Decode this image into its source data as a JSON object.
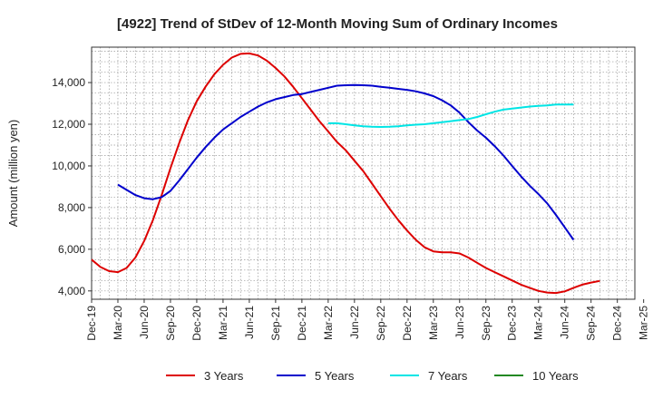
{
  "chart_data": {
    "type": "line",
    "title": "[4922]  Trend of StDev of 12-Month Moving Sum of Ordinary Incomes",
    "ylabel": "Amount (million yen)",
    "xlabel": "",
    "ylim": [
      3600,
      15700
    ],
    "yticks": [
      4000,
      6000,
      8000,
      10000,
      12000,
      14000
    ],
    "ytick_labels": [
      "4,000",
      "6,000",
      "8,000",
      "10,000",
      "12,000",
      "14,000"
    ],
    "x_start": "Dec-19",
    "x_count": 63,
    "xtick_labels": [
      "Dec-19",
      "Mar-20",
      "Jun-20",
      "Sep-20",
      "Dec-20",
      "Mar-21",
      "Jun-21",
      "Sep-21",
      "Dec-21",
      "Mar-22",
      "Jun-22",
      "Sep-22",
      "Dec-22",
      "Mar-23",
      "Jun-23",
      "Sep-23",
      "Dec-23",
      "Mar-24",
      "Jun-24",
      "Sep-24",
      "Dec-24",
      "Mar-25"
    ],
    "grid": true,
    "legend_position": "bottom",
    "series": [
      {
        "name": "3 Years",
        "color": "#dd0000",
        "start": "Dec-19",
        "values": [
          5500,
          5150,
          4950,
          4900,
          5100,
          5600,
          6400,
          7400,
          8600,
          9900,
          11100,
          12200,
          13100,
          13800,
          14400,
          14850,
          15200,
          15380,
          15400,
          15300,
          15050,
          14700,
          14300,
          13800,
          13250,
          12700,
          12150,
          11650,
          11150,
          10750,
          10250,
          9750,
          9150,
          8550,
          7950,
          7400,
          6900,
          6450,
          6100,
          5900,
          5850,
          5850,
          5800,
          5600,
          5350,
          5100,
          4900,
          4700,
          4500,
          4300,
          4150,
          4000,
          3920,
          3900,
          3980,
          4150,
          4300,
          4400,
          4480
        ]
      },
      {
        "name": "5 Years",
        "color": "#0000cc",
        "start": "Dec-19",
        "values": [
          null,
          null,
          null,
          null,
          null,
          null,
          null,
          null,
          null,
          null,
          null,
          null,
          null,
          null,
          null,
          null,
          null,
          null,
          null,
          null,
          null,
          null,
          null,
          null,
          null,
          null,
          null,
          null,
          null,
          null,
          null,
          null,
          null,
          null,
          null,
          null,
          null,
          null,
          null,
          null,
          null,
          null,
          null,
          null,
          null,
          null,
          null,
          null,
          null,
          null,
          null,
          null,
          null,
          null,
          null,
          null,
          null,
          null,
          null
        ],
        "points": [
          [
            3,
            9100
          ],
          [
            4,
            8850
          ],
          [
            5,
            8600
          ],
          [
            6,
            8450
          ],
          [
            7,
            8400
          ],
          [
            8,
            8500
          ],
          [
            9,
            8800
          ],
          [
            10,
            9300
          ],
          [
            11,
            9850
          ],
          [
            12,
            10400
          ],
          [
            13,
            10900
          ],
          [
            14,
            11350
          ],
          [
            15,
            11750
          ],
          [
            16,
            12050
          ],
          [
            17,
            12350
          ],
          [
            18,
            12600
          ],
          [
            19,
            12850
          ],
          [
            20,
            13050
          ],
          [
            21,
            13200
          ],
          [
            22,
            13300
          ],
          [
            23,
            13400
          ],
          [
            24,
            13450
          ],
          [
            25,
            13550
          ],
          [
            26,
            13650
          ],
          [
            27,
            13750
          ],
          [
            28,
            13850
          ],
          [
            29,
            13870
          ],
          [
            30,
            13880
          ],
          [
            31,
            13870
          ],
          [
            32,
            13850
          ],
          [
            33,
            13800
          ],
          [
            34,
            13750
          ],
          [
            35,
            13700
          ],
          [
            36,
            13650
          ],
          [
            37,
            13580
          ],
          [
            38,
            13480
          ],
          [
            39,
            13350
          ],
          [
            40,
            13150
          ],
          [
            41,
            12900
          ],
          [
            42,
            12550
          ],
          [
            43,
            12100
          ],
          [
            44,
            11700
          ],
          [
            45,
            11350
          ],
          [
            46,
            10950
          ],
          [
            47,
            10500
          ],
          [
            48,
            10000
          ],
          [
            49,
            9500
          ],
          [
            50,
            9050
          ],
          [
            51,
            8650
          ],
          [
            52,
            8200
          ],
          [
            53,
            7650
          ],
          [
            54,
            7050
          ],
          [
            55,
            6450
          ]
        ]
      },
      {
        "name": "7 Years",
        "color": "#00e5e5",
        "start": "Dec-19",
        "points": [
          [
            27,
            12050
          ],
          [
            28,
            12050
          ],
          [
            29,
            12000
          ],
          [
            30,
            11950
          ],
          [
            31,
            11900
          ],
          [
            32,
            11880
          ],
          [
            33,
            11870
          ],
          [
            34,
            11880
          ],
          [
            35,
            11900
          ],
          [
            36,
            11950
          ],
          [
            37,
            11980
          ],
          [
            38,
            12000
          ],
          [
            39,
            12050
          ],
          [
            40,
            12100
          ],
          [
            41,
            12150
          ],
          [
            42,
            12200
          ],
          [
            43,
            12250
          ],
          [
            44,
            12350
          ],
          [
            45,
            12480
          ],
          [
            46,
            12600
          ],
          [
            47,
            12700
          ],
          [
            48,
            12750
          ],
          [
            49,
            12800
          ],
          [
            50,
            12850
          ],
          [
            51,
            12880
          ],
          [
            52,
            12900
          ],
          [
            53,
            12950
          ],
          [
            54,
            12950
          ],
          [
            55,
            12950
          ]
        ]
      },
      {
        "name": "10 Years",
        "color": "#228822",
        "start": "Dec-19",
        "points": []
      }
    ]
  }
}
